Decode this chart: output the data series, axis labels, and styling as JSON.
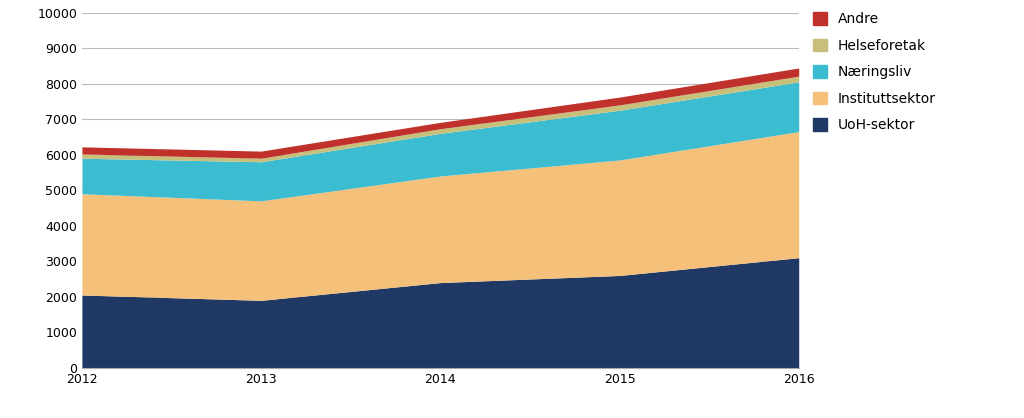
{
  "years": [
    2012,
    2013,
    2014,
    2015,
    2016
  ],
  "series": [
    {
      "label": "UoH-sektor",
      "color": "#1F3864",
      "values": [
        2050,
        1900,
        2400,
        2600,
        3100
      ]
    },
    {
      "label": "Instituttsektor",
      "color": "#F5C07A",
      "values": [
        2850,
        2800,
        3000,
        3250,
        3550
      ]
    },
    {
      "label": "Næringsliv",
      "color": "#3BBCD0",
      "values": [
        1000,
        1100,
        1200,
        1400,
        1400
      ]
    },
    {
      "label": "Helseforetak",
      "color": "#C8C07A",
      "values": [
        120,
        100,
        130,
        150,
        160
      ]
    },
    {
      "label": "Andre",
      "color": "#C0312B",
      "values": [
        200,
        200,
        180,
        220,
        230
      ]
    }
  ],
  "ylim": [
    0,
    10000
  ],
  "yticks": [
    0,
    1000,
    2000,
    3000,
    4000,
    5000,
    6000,
    7000,
    8000,
    9000,
    10000
  ],
  "background_color": "#FFFFFF",
  "plot_bg_color": "#FFFFFF",
  "grid_color": "#BBBBBB",
  "figsize": [
    10.24,
    4.18
  ],
  "dpi": 100
}
